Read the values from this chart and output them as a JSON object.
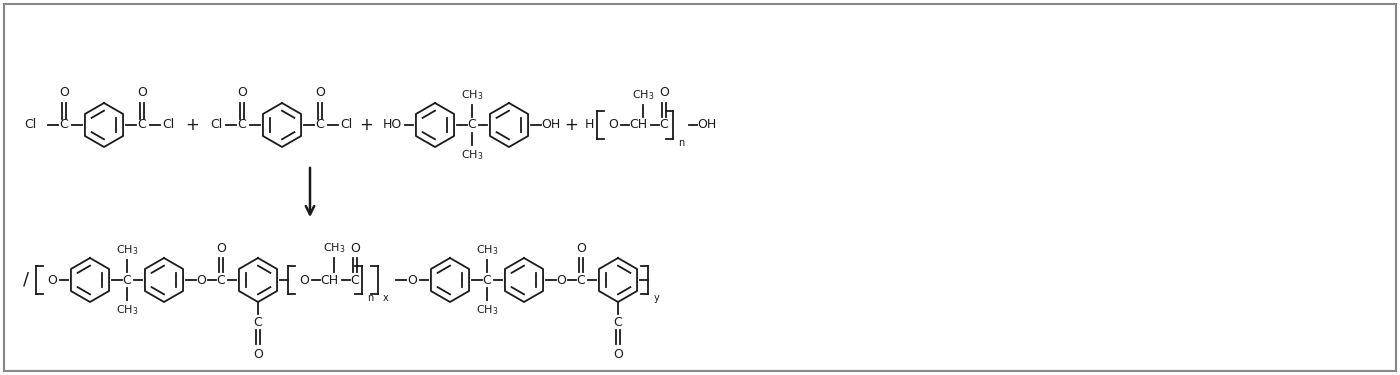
{
  "background_color": "#ffffff",
  "border_color": "#666666",
  "line_color": "#1a1a1a",
  "fig_width": 14.0,
  "fig_height": 3.75,
  "dpi": 100,
  "xlim": [
    0,
    1400
  ],
  "ylim": [
    0,
    375
  ]
}
